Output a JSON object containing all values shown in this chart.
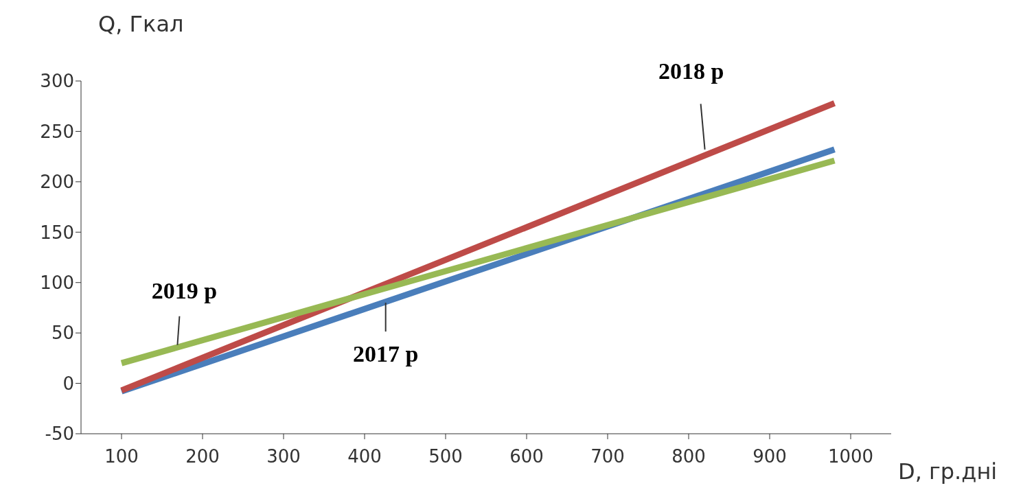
{
  "chart_data": {
    "type": "line",
    "xlabel": "D, гр.дні",
    "ylabel": "Q, Гкал",
    "xlim": [
      50,
      1050
    ],
    "xticks": [
      100,
      200,
      300,
      400,
      500,
      600,
      700,
      800,
      900,
      1000
    ],
    "ylim": [
      -50,
      300
    ],
    "yticks": [
      -50,
      0,
      50,
      100,
      150,
      200,
      250,
      300
    ],
    "grid": false,
    "legend": false,
    "marker": "none",
    "line_style": "solid",
    "x": [
      100,
      980
    ],
    "series": [
      {
        "color": "#4a7ebb",
        "values": [
          -8,
          232
        ]
      },
      {
        "color": "#be4b48",
        "values": [
          -7,
          278
        ]
      },
      {
        "color": "#98b954",
        "values": [
          20,
          221
        ]
      }
    ],
    "annotations": [
      {
        "text": "2018 р",
        "x": 820,
        "y": 232
      },
      {
        "text": "2019 р",
        "x": 169,
        "y": 38
      },
      {
        "text": "2017 р",
        "x": 426,
        "y": 80
      }
    ]
  }
}
